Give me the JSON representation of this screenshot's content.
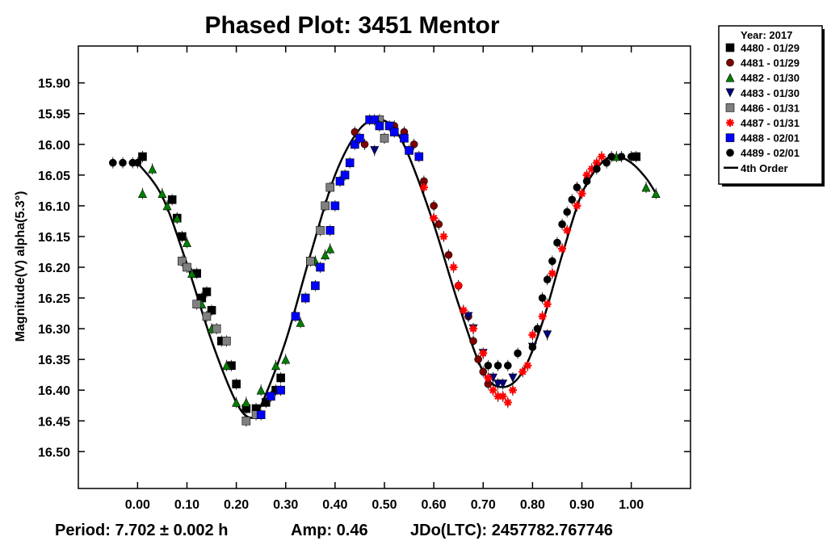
{
  "chart_data": {
    "type": "scatter",
    "title": "Phased Plot: 3451 Mentor",
    "xlabel": "",
    "ylabel": "Magnitude(V) alpha(5.3°)",
    "xlim": [
      -0.12,
      1.12
    ],
    "ylim": [
      16.56,
      15.84
    ],
    "y_inverted": true,
    "x_ticks": [
      "0.00",
      "0.10",
      "0.20",
      "0.30",
      "0.40",
      "0.50",
      "0.60",
      "0.70",
      "0.80",
      "0.90",
      "1.00"
    ],
    "y_ticks": [
      "15.90",
      "15.95",
      "16.00",
      "16.05",
      "16.10",
      "16.15",
      "16.20",
      "16.25",
      "16.30",
      "16.35",
      "16.40",
      "16.45",
      "16.50"
    ],
    "grid": false,
    "legend_position": "top-right, outside plot",
    "legend_title": "Year: 2017",
    "series": [
      {
        "name": "4480 - 01/29",
        "marker": "square",
        "color": "#000000",
        "points": [
          [
            0.01,
            16.02
          ],
          [
            0.07,
            16.09
          ],
          [
            0.08,
            16.12
          ],
          [
            0.09,
            16.15
          ],
          [
            0.12,
            16.21
          ],
          [
            0.13,
            16.25
          ],
          [
            0.14,
            16.24
          ],
          [
            0.15,
            16.27
          ],
          [
            0.17,
            16.32
          ],
          [
            0.19,
            16.36
          ],
          [
            0.2,
            16.39
          ],
          [
            0.22,
            16.43
          ],
          [
            0.24,
            16.43
          ],
          [
            0.26,
            16.42
          ],
          [
            0.28,
            16.4
          ],
          [
            0.29,
            16.38
          ],
          [
            1.01,
            16.02
          ]
        ]
      },
      {
        "name": "4481 - 01/29",
        "marker": "circle",
        "color": "#800000",
        "points": [
          [
            0.44,
            15.98
          ],
          [
            0.46,
            16.0
          ],
          [
            0.49,
            15.96
          ],
          [
            0.52,
            15.97
          ],
          [
            0.54,
            15.98
          ],
          [
            0.56,
            16.0
          ],
          [
            0.58,
            16.06
          ],
          [
            0.6,
            16.1
          ],
          [
            0.61,
            16.13
          ],
          [
            0.63,
            16.18
          ],
          [
            0.65,
            16.23
          ],
          [
            0.67,
            16.28
          ],
          [
            0.68,
            16.32
          ],
          [
            0.69,
            16.35
          ],
          [
            0.7,
            16.37
          ],
          [
            0.71,
            16.39
          ]
        ]
      },
      {
        "name": "4482 - 01/30",
        "marker": "triangle-up",
        "color": "#008000",
        "points": [
          [
            0.01,
            16.08
          ],
          [
            0.03,
            16.04
          ],
          [
            0.05,
            16.08
          ],
          [
            0.06,
            16.1
          ],
          [
            0.08,
            16.12
          ],
          [
            0.1,
            16.16
          ],
          [
            0.11,
            16.21
          ],
          [
            0.13,
            16.26
          ],
          [
            0.15,
            16.3
          ],
          [
            0.18,
            16.36
          ],
          [
            0.2,
            16.42
          ],
          [
            0.22,
            16.42
          ],
          [
            0.25,
            16.4
          ],
          [
            0.28,
            16.36
          ],
          [
            0.3,
            16.35
          ],
          [
            0.33,
            16.29
          ],
          [
            0.36,
            16.19
          ],
          [
            0.38,
            16.18
          ],
          [
            0.39,
            16.17
          ],
          [
            0.97,
            16.02
          ],
          [
            1.03,
            16.07
          ],
          [
            1.05,
            16.08
          ]
        ]
      },
      {
        "name": "4483 - 01/30",
        "marker": "triangle-down",
        "color": "#000080",
        "points": [
          [
            0.48,
            16.01
          ],
          [
            0.67,
            16.28
          ],
          [
            0.68,
            16.3
          ],
          [
            0.7,
            16.34
          ],
          [
            0.72,
            16.38
          ],
          [
            0.73,
            16.39
          ],
          [
            0.74,
            16.39
          ],
          [
            0.76,
            16.38
          ],
          [
            0.8,
            16.33
          ],
          [
            0.83,
            16.31
          ]
        ]
      },
      {
        "name": "4486 - 01/31",
        "marker": "square",
        "color": "#808080",
        "points": [
          [
            0.09,
            16.19
          ],
          [
            0.1,
            16.2
          ],
          [
            0.12,
            16.26
          ],
          [
            0.14,
            16.28
          ],
          [
            0.16,
            16.3
          ],
          [
            0.18,
            16.32
          ],
          [
            0.22,
            16.45
          ],
          [
            0.24,
            16.44
          ],
          [
            0.35,
            16.19
          ],
          [
            0.37,
            16.14
          ],
          [
            0.38,
            16.1
          ],
          [
            0.39,
            16.07
          ],
          [
            0.49,
            15.96
          ],
          [
            0.5,
            15.99
          ]
        ]
      },
      {
        "name": "4487 - 01/31",
        "marker": "asterisk",
        "color": "#ff0000",
        "points": [
          [
            0.58,
            16.07
          ],
          [
            0.6,
            16.12
          ],
          [
            0.62,
            16.15
          ],
          [
            0.64,
            16.2
          ],
          [
            0.65,
            16.23
          ],
          [
            0.66,
            16.27
          ],
          [
            0.68,
            16.3
          ],
          [
            0.7,
            16.34
          ],
          [
            0.71,
            16.38
          ],
          [
            0.72,
            16.4
          ],
          [
            0.73,
            16.41
          ],
          [
            0.74,
            16.41
          ],
          [
            0.75,
            16.42
          ],
          [
            0.76,
            16.4
          ],
          [
            0.78,
            16.37
          ],
          [
            0.79,
            16.36
          ],
          [
            0.8,
            16.31
          ],
          [
            0.82,
            16.28
          ],
          [
            0.83,
            16.26
          ],
          [
            0.84,
            16.21
          ],
          [
            0.86,
            16.17
          ],
          [
            0.87,
            16.14
          ],
          [
            0.89,
            16.1
          ],
          [
            0.9,
            16.08
          ],
          [
            0.91,
            16.05
          ],
          [
            0.92,
            16.04
          ],
          [
            0.93,
            16.03
          ],
          [
            0.94,
            16.02
          ]
        ]
      },
      {
        "name": "4488 - 02/01",
        "marker": "square",
        "color": "#0000ff",
        "points": [
          [
            0.25,
            16.44
          ],
          [
            0.27,
            16.41
          ],
          [
            0.29,
            16.4
          ],
          [
            0.32,
            16.28
          ],
          [
            0.34,
            16.25
          ],
          [
            0.36,
            16.23
          ],
          [
            0.37,
            16.2
          ],
          [
            0.39,
            16.14
          ],
          [
            0.4,
            16.1
          ],
          [
            0.41,
            16.06
          ],
          [
            0.42,
            16.05
          ],
          [
            0.43,
            16.03
          ],
          [
            0.44,
            16.0
          ],
          [
            0.45,
            15.99
          ],
          [
            0.47,
            15.96
          ],
          [
            0.48,
            15.96
          ],
          [
            0.49,
            15.97
          ],
          [
            0.51,
            15.97
          ],
          [
            0.52,
            15.98
          ],
          [
            0.54,
            15.99
          ],
          [
            0.55,
            16.01
          ],
          [
            0.57,
            16.02
          ]
        ]
      },
      {
        "name": "4489 - 02/01",
        "marker": "circle",
        "color": "#000000",
        "points": [
          [
            -0.05,
            16.03
          ],
          [
            -0.03,
            16.03
          ],
          [
            -0.01,
            16.03
          ],
          [
            0.0,
            16.03
          ],
          [
            0.01,
            16.02
          ],
          [
            0.71,
            16.36
          ],
          [
            0.73,
            16.36
          ],
          [
            0.75,
            16.36
          ],
          [
            0.77,
            16.34
          ],
          [
            0.8,
            16.33
          ],
          [
            0.81,
            16.3
          ],
          [
            0.82,
            16.25
          ],
          [
            0.83,
            16.22
          ],
          [
            0.84,
            16.19
          ],
          [
            0.85,
            16.16
          ],
          [
            0.86,
            16.13
          ],
          [
            0.87,
            16.11
          ],
          [
            0.88,
            16.09
          ],
          [
            0.89,
            16.07
          ],
          [
            0.91,
            16.06
          ],
          [
            0.93,
            16.04
          ],
          [
            0.95,
            16.03
          ],
          [
            0.96,
            16.02
          ],
          [
            0.98,
            16.02
          ],
          [
            1.0,
            16.02
          ]
        ]
      }
    ],
    "fit": {
      "name": "4th Order",
      "color": "#000000",
      "points": [
        [
          0.0,
          16.03
        ],
        [
          0.05,
          16.085
        ],
        [
          0.1,
          16.195
        ],
        [
          0.15,
          16.32
        ],
        [
          0.2,
          16.42
        ],
        [
          0.23,
          16.445
        ],
        [
          0.25,
          16.425
        ],
        [
          0.3,
          16.32
        ],
        [
          0.35,
          16.18
        ],
        [
          0.4,
          16.05
        ],
        [
          0.45,
          15.975
        ],
        [
          0.49,
          15.96
        ],
        [
          0.52,
          15.975
        ],
        [
          0.55,
          16.02
        ],
        [
          0.6,
          16.13
        ],
        [
          0.65,
          16.26
        ],
        [
          0.7,
          16.37
        ],
        [
          0.74,
          16.395
        ],
        [
          0.78,
          16.37
        ],
        [
          0.82,
          16.29
        ],
        [
          0.86,
          16.18
        ],
        [
          0.9,
          16.08
        ],
        [
          0.94,
          16.03
        ],
        [
          0.97,
          16.02
        ],
        [
          1.0,
          16.03
        ],
        [
          1.03,
          16.055
        ],
        [
          1.05,
          16.08
        ]
      ]
    }
  },
  "footer": {
    "period": "Period: 7.702 ± 0.002 h",
    "amp": "Amp: 0.46",
    "jdo": "JDo(LTC): 2457782.767746"
  }
}
